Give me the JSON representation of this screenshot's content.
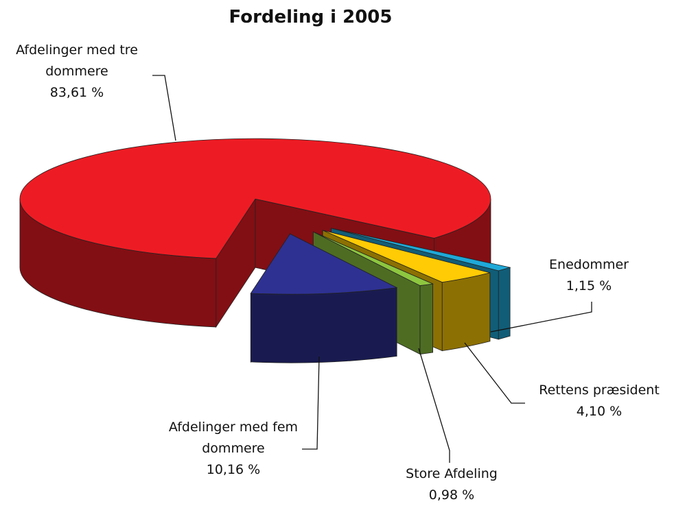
{
  "chart_data": {
    "type": "pie",
    "title": "Fordeling i 2005",
    "categories": [
      "Afdelinger med tre dommere",
      "Afdelinger med fem dommere",
      "Store Afdeling",
      "Rettens præsident",
      "Enedommer"
    ],
    "values": [
      83.61,
      10.16,
      0.98,
      4.1,
      1.15
    ],
    "value_labels": [
      "83,61 %",
      "10,16 %",
      "0,98 %",
      "4,10 %",
      "1,15 %"
    ],
    "colors": [
      "#ed1c24",
      "#2e3192",
      "#8dc63f",
      "#ffcb05",
      "#1fa9d8"
    ]
  }
}
